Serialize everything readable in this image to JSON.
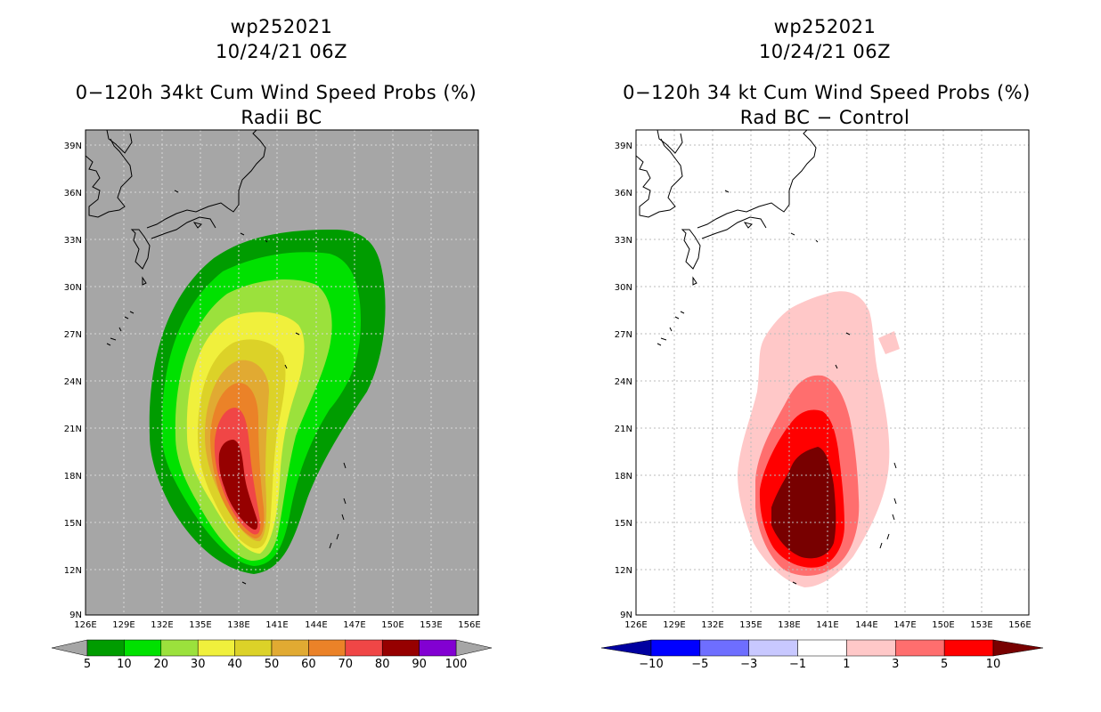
{
  "left": {
    "storm_id": "wp252021",
    "datetime": "10/24/21 06Z",
    "title": "0−120h 34kt Cum Wind Speed Probs (%)",
    "subtitle": "Radii BC",
    "colorbar_labels": [
      "5",
      "10",
      "20",
      "30",
      "40",
      "50",
      "60",
      "70",
      "80",
      "90",
      "100"
    ],
    "colorbar_colors": [
      "#009c00",
      "#00e100",
      "#9be13c",
      "#f0f03c",
      "#dcd228",
      "#e1aa32",
      "#eb8228",
      "#f04646",
      "#960000",
      "#8200d2"
    ],
    "background_color": "#a6a6a6"
  },
  "right": {
    "storm_id": "wp252021",
    "datetime": "10/24/21 06Z",
    "title": "0−120h 34 kt Cum Wind Speed Probs (%)",
    "subtitle": "Rad BC − Control",
    "colorbar_labels": [
      "−10",
      "−5",
      "−3",
      "−1",
      "1",
      "3",
      "5",
      "10"
    ],
    "colorbar_colors": [
      "#0000a0",
      "#0000ff",
      "#6e6eff",
      "#c8c8ff",
      "#ffffff",
      "#ffc8c8",
      "#ff6e6e",
      "#ff0000",
      "#780000"
    ]
  },
  "axes": {
    "lat_labels": [
      "39N",
      "36N",
      "33N",
      "30N",
      "27N",
      "24N",
      "21N",
      "18N",
      "15N",
      "12N",
      "9N"
    ],
    "lon_labels": [
      "126E",
      "129E",
      "132E",
      "135E",
      "138E",
      "141E",
      "144E",
      "147E",
      "150E",
      "153E",
      "156E"
    ],
    "lat_range": [
      9,
      39.5
    ],
    "lon_range": [
      126,
      156
    ]
  }
}
